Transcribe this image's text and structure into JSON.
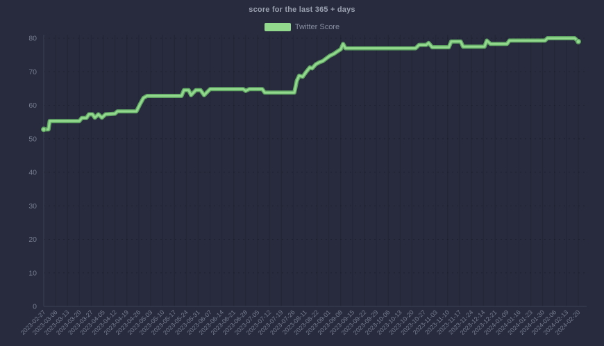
{
  "theme": {
    "background": "#272b3d",
    "title_color": "#9ba1b0",
    "label_color": "#787e91",
    "legend_text_color": "#8a90a2",
    "grid_horizontal": "rgba(0,0,0,0.22)",
    "grid_vertical": "rgba(0,0,0,0.13)",
    "axis_color": "#3b4054",
    "line_color": "#92d98e",
    "line_edge_color": "#5fa463"
  },
  "chart_data": {
    "type": "line",
    "title": "score for the last 365 + days",
    "legend": {
      "position": "top",
      "items": [
        {
          "label": "Twitter Score",
          "color": "#92d98e"
        }
      ]
    },
    "x_labels": [
      "2023-02-27",
      "2023-03-06",
      "2023-03-13",
      "2023-03-20",
      "2023-03-27",
      "2023-04-05",
      "2023-04-12",
      "2023-04-19",
      "2023-04-26",
      "2023-05-03",
      "2023-05-10",
      "2023-05-17",
      "2023-05-24",
      "2023-05-31",
      "2023-06-07",
      "2023-06-14",
      "2023-06-21",
      "2023-06-28",
      "2023-07-05",
      "2023-07-12",
      "2023-07-19",
      "2023-07-26",
      "2023-08-11",
      "2023-08-22",
      "2023-09-01",
      "2023-09-08",
      "2023-09-15",
      "2023-09-22",
      "2023-09-29",
      "2023-10-06",
      "2023-10-13",
      "2023-10-20",
      "2023-10-27",
      "2023-11-03",
      "2023-11-10",
      "2023-11-17",
      "2023-11-24",
      "2023-12-14",
      "2023-12-21",
      "2024-01-09",
      "2024-01-16",
      "2024-01-23",
      "2024-01-30",
      "2024-02-06",
      "2024-02-13",
      "2024-02-20"
    ],
    "y_ticks": [
      0,
      10,
      20,
      30,
      40,
      50,
      60,
      70,
      80
    ],
    "ylim": [
      0,
      81
    ],
    "grid": {
      "horizontal": "dotted",
      "vertical": "faint-solid"
    },
    "series": [
      {
        "name": "Twitter Score",
        "color": "#92d98e",
        "points": [
          [
            0,
            52.8
          ],
          [
            0.4,
            52.8
          ],
          [
            0.5,
            55.3
          ],
          [
            3.0,
            55.3
          ],
          [
            3.2,
            56.2
          ],
          [
            3.6,
            56.2
          ],
          [
            3.8,
            57.3
          ],
          [
            4.1,
            57.3
          ],
          [
            4.3,
            56.3
          ],
          [
            4.6,
            57.3
          ],
          [
            4.9,
            56.3
          ],
          [
            5.2,
            57.3
          ],
          [
            6.0,
            57.5
          ],
          [
            6.2,
            58.2
          ],
          [
            7.8,
            58.2
          ],
          [
            8.1,
            60.3
          ],
          [
            8.4,
            62.2
          ],
          [
            8.7,
            62.8
          ],
          [
            11.6,
            62.8
          ],
          [
            11.8,
            64.5
          ],
          [
            12.2,
            64.5
          ],
          [
            12.4,
            63.0
          ],
          [
            12.8,
            64.5
          ],
          [
            13.2,
            64.5
          ],
          [
            13.5,
            63.0
          ],
          [
            14.0,
            64.8
          ],
          [
            16.8,
            64.8
          ],
          [
            17.0,
            64.3
          ],
          [
            17.3,
            64.8
          ],
          [
            18.4,
            64.8
          ],
          [
            18.6,
            63.8
          ],
          [
            21.1,
            63.8
          ],
          [
            21.3,
            67.3
          ],
          [
            21.5,
            68.8
          ],
          [
            21.8,
            68.5
          ],
          [
            22.1,
            70.0
          ],
          [
            22.4,
            71.3
          ],
          [
            22.6,
            71.0
          ],
          [
            22.9,
            72.2
          ],
          [
            23.2,
            72.8
          ],
          [
            23.5,
            73.2
          ],
          [
            23.8,
            74.0
          ],
          [
            24.1,
            74.8
          ],
          [
            24.4,
            75.3
          ],
          [
            24.7,
            76.0
          ],
          [
            25.0,
            76.7
          ],
          [
            25.2,
            78.3
          ],
          [
            25.4,
            77.0
          ],
          [
            31.3,
            77.0
          ],
          [
            31.6,
            78.0
          ],
          [
            32.2,
            78.0
          ],
          [
            32.4,
            78.6
          ],
          [
            32.7,
            77.3
          ],
          [
            34.1,
            77.3
          ],
          [
            34.3,
            79.0
          ],
          [
            35.1,
            79.0
          ],
          [
            35.3,
            77.5
          ],
          [
            37.1,
            77.5
          ],
          [
            37.3,
            79.3
          ],
          [
            37.6,
            78.3
          ],
          [
            39.0,
            78.3
          ],
          [
            39.2,
            79.3
          ],
          [
            42.2,
            79.3
          ],
          [
            42.4,
            80.0
          ],
          [
            44.7,
            80.0
          ],
          [
            45.0,
            79.0
          ]
        ]
      }
    ]
  }
}
